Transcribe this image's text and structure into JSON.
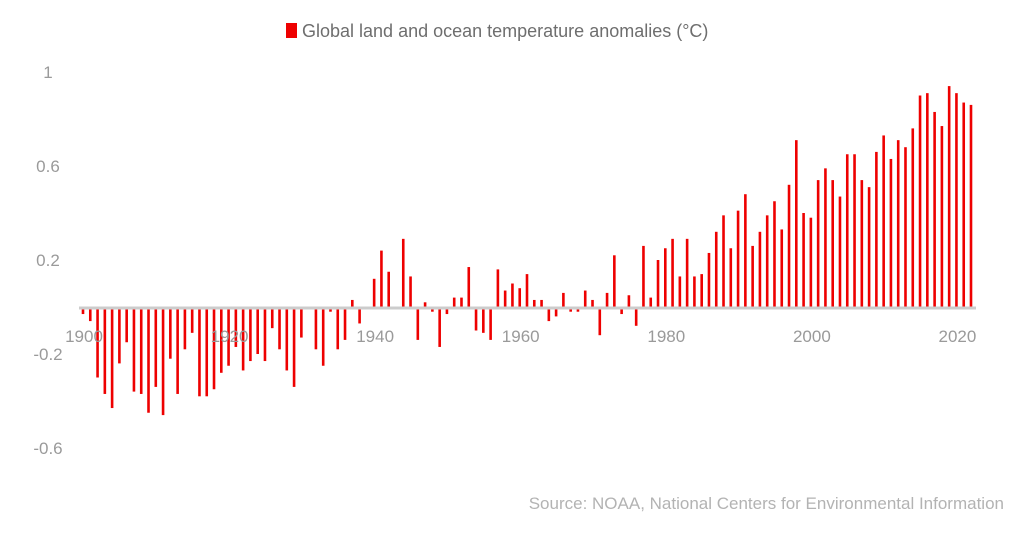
{
  "chart_data": {
    "type": "bar",
    "legend": "Global land and ocean temperature anomalies (°C)",
    "source": "Source: NOAA, National Centers for Environmental Information",
    "color": "#ee0000",
    "axis_color": "#cccccc",
    "grid": false,
    "legend_position": "top-center",
    "ylim": [
      -0.8,
      1.0
    ],
    "yticks": [
      {
        "value": 1,
        "label": "1"
      },
      {
        "value": 0.6,
        "label": "0.6"
      },
      {
        "value": 0.2,
        "label": "0.2"
      },
      {
        "value": -0.2,
        "label": "-0.2"
      },
      {
        "value": -0.6,
        "label": "-0.6"
      }
    ],
    "xticks": [
      {
        "value": 1900,
        "label": "1900"
      },
      {
        "value": 1920,
        "label": "1920"
      },
      {
        "value": 1940,
        "label": "1940"
      },
      {
        "value": 1960,
        "label": "1960"
      },
      {
        "value": 1980,
        "label": "1980"
      },
      {
        "value": 2000,
        "label": "2000"
      },
      {
        "value": 2020,
        "label": "2020"
      }
    ],
    "x": [
      1900,
      1901,
      1902,
      1903,
      1904,
      1905,
      1906,
      1907,
      1908,
      1909,
      1910,
      1911,
      1912,
      1913,
      1914,
      1915,
      1916,
      1917,
      1918,
      1919,
      1920,
      1921,
      1922,
      1923,
      1924,
      1925,
      1926,
      1927,
      1928,
      1929,
      1930,
      1931,
      1932,
      1933,
      1934,
      1935,
      1936,
      1937,
      1938,
      1939,
      1940,
      1941,
      1942,
      1943,
      1944,
      1945,
      1946,
      1947,
      1948,
      1949,
      1950,
      1951,
      1952,
      1953,
      1954,
      1955,
      1956,
      1957,
      1958,
      1959,
      1960,
      1961,
      1962,
      1963,
      1964,
      1965,
      1966,
      1967,
      1968,
      1969,
      1970,
      1971,
      1972,
      1973,
      1974,
      1975,
      1976,
      1977,
      1978,
      1979,
      1980,
      1981,
      1982,
      1983,
      1984,
      1985,
      1986,
      1987,
      1988,
      1989,
      1990,
      1991,
      1992,
      1993,
      1994,
      1995,
      1996,
      1997,
      1998,
      1999,
      2000,
      2001,
      2002,
      2003,
      2004,
      2005,
      2006,
      2007,
      2008,
      2009,
      2010,
      2011,
      2012,
      2013,
      2014,
      2015,
      2016,
      2017,
      2018,
      2019,
      2020,
      2021,
      2022
    ],
    "values": [
      -0.03,
      -0.06,
      -0.3,
      -0.37,
      -0.43,
      -0.24,
      -0.15,
      -0.36,
      -0.37,
      -0.45,
      -0.34,
      -0.46,
      -0.22,
      -0.37,
      -0.18,
      -0.11,
      -0.38,
      -0.38,
      -0.35,
      -0.28,
      -0.25,
      -0.17,
      -0.27,
      -0.23,
      -0.2,
      -0.23,
      -0.09,
      -0.18,
      -0.27,
      -0.34,
      -0.13,
      -0.01,
      -0.18,
      -0.25,
      -0.02,
      -0.18,
      -0.14,
      0.03,
      -0.07,
      0.0,
      0.12,
      0.24,
      0.15,
      -0.01,
      0.29,
      0.13,
      -0.14,
      0.02,
      -0.02,
      -0.17,
      -0.03,
      0.04,
      0.04,
      0.17,
      -0.1,
      -0.11,
      -0.14,
      0.16,
      0.07,
      0.1,
      0.08,
      0.14,
      0.03,
      0.03,
      -0.06,
      -0.04,
      0.06,
      -0.02,
      -0.02,
      0.07,
      0.03,
      -0.12,
      0.06,
      0.22,
      -0.03,
      0.05,
      -0.08,
      0.26,
      0.04,
      0.2,
      0.25,
      0.29,
      0.13,
      0.29,
      0.13,
      0.14,
      0.23,
      0.32,
      0.39,
      0.25,
      0.41,
      0.48,
      0.26,
      0.32,
      0.39,
      0.45,
      0.33,
      0.52,
      0.71,
      0.4,
      0.38,
      0.54,
      0.59,
      0.54,
      0.47,
      0.65,
      0.65,
      0.54,
      0.51,
      0.66,
      0.73,
      0.63,
      0.71,
      0.68,
      0.76,
      0.9,
      0.91,
      0.83,
      0.77,
      0.94,
      0.91,
      0.87,
      0.86
    ]
  }
}
